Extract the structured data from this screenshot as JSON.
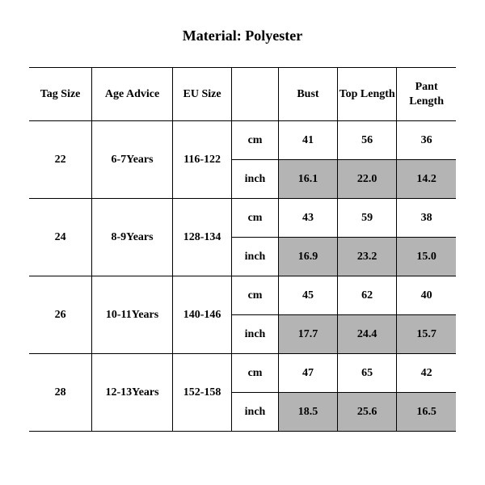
{
  "title": "Material: Polyester",
  "table": {
    "columns": [
      "Tag Size",
      "Age Advice",
      "EU Size",
      "",
      "Bust",
      "Top Length",
      "Pant Length"
    ],
    "unit_labels": {
      "cm": "cm",
      "inch": "inch"
    },
    "rows": [
      {
        "tag_size": "22",
        "age_advice": "6-7Years",
        "eu_size": "116-122",
        "cm": {
          "bust": "41",
          "top_length": "56",
          "pant_length": "36"
        },
        "inch": {
          "bust": "16.1",
          "top_length": "22.0",
          "pant_length": "14.2"
        }
      },
      {
        "tag_size": "24",
        "age_advice": "8-9Years",
        "eu_size": "128-134",
        "cm": {
          "bust": "43",
          "top_length": "59",
          "pant_length": "38"
        },
        "inch": {
          "bust": "16.9",
          "top_length": "23.2",
          "pant_length": "15.0"
        }
      },
      {
        "tag_size": "26",
        "age_advice": "10-11Years",
        "eu_size": "140-146",
        "cm": {
          "bust": "45",
          "top_length": "62",
          "pant_length": "40"
        },
        "inch": {
          "bust": "17.7",
          "top_length": "24.4",
          "pant_length": "15.7"
        }
      },
      {
        "tag_size": "28",
        "age_advice": "12-13Years",
        "eu_size": "152-158",
        "cm": {
          "bust": "47",
          "top_length": "65",
          "pant_length": "42"
        },
        "inch": {
          "bust": "18.5",
          "top_length": "25.6",
          "pant_length": "16.5"
        }
      }
    ],
    "colors": {
      "background": "#ffffff",
      "border": "#000000",
      "shaded_cell": "#b4b4b4",
      "text": "#000000"
    },
    "typography": {
      "font_family": "Times New Roman",
      "title_fontsize_pt": 14,
      "cell_fontsize_pt": 11,
      "weight": "bold"
    }
  }
}
